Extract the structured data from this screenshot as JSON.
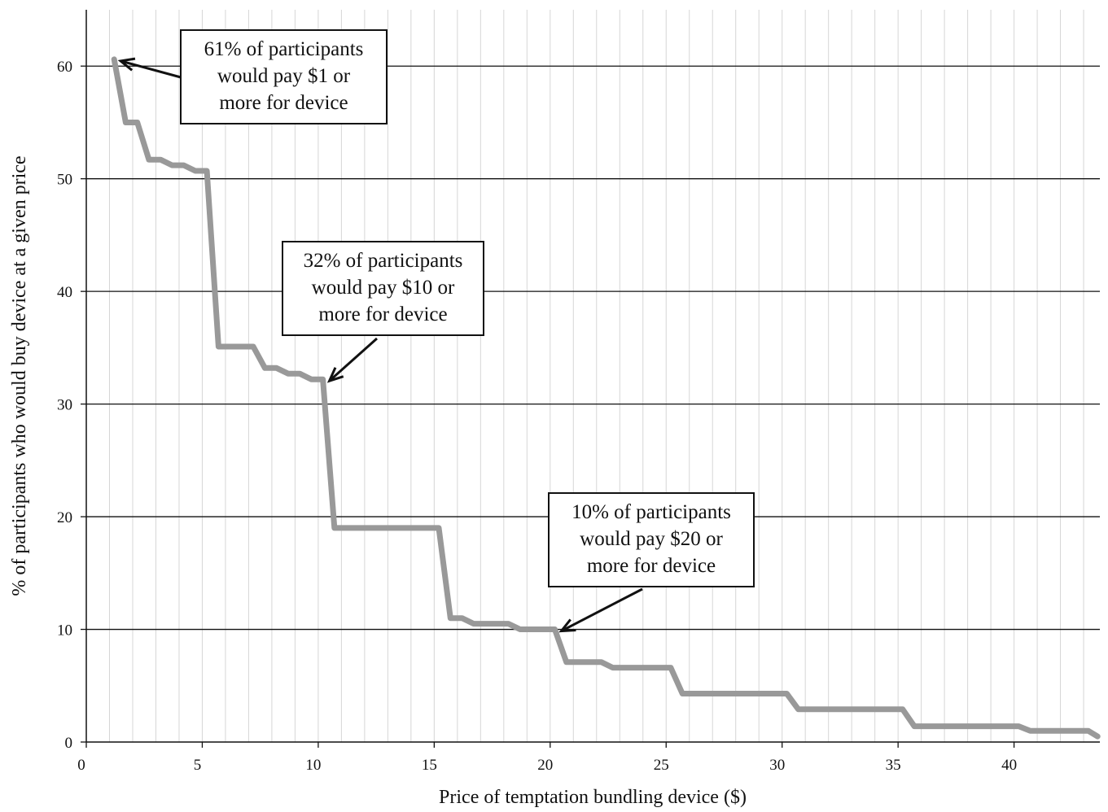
{
  "chart_data": {
    "type": "line",
    "title": "",
    "xlabel": "Price of temptation bundling device ($)",
    "ylabel": "% of participants who would buy device at a given price",
    "xlim": [
      0,
      43.7
    ],
    "ylim": [
      0,
      65
    ],
    "x_ticks": [
      "0",
      "5",
      "10",
      "15",
      "20",
      "25",
      "30",
      "35",
      "40"
    ],
    "y_ticks": [
      "0",
      "10",
      "20",
      "30",
      "40",
      "50",
      "60"
    ],
    "grid": {
      "major_horizontal": true,
      "minor_vertical": true
    },
    "series": [
      {
        "color": "#999999",
        "x": [
          1.2,
          1.7,
          2.2,
          2.7,
          3.2,
          3.7,
          4.2,
          4.7,
          5.2,
          5.7,
          6.2,
          6.7,
          7.2,
          7.7,
          8.2,
          8.7,
          9.2,
          9.7,
          10.2,
          10.7,
          11.2,
          11.7,
          12.2,
          12.7,
          13.2,
          13.7,
          14.2,
          14.7,
          15.2,
          15.7,
          16.2,
          16.7,
          17.2,
          17.7,
          18.2,
          18.7,
          19.2,
          19.7,
          20.2,
          20.7,
          21.2,
          21.7,
          22.2,
          22.7,
          23.2,
          23.7,
          24.2,
          24.7,
          25.2,
          25.7,
          26.2,
          26.7,
          27.2,
          27.7,
          28.2,
          28.7,
          29.2,
          29.7,
          30.2,
          30.7,
          31.2,
          31.7,
          32.2,
          32.7,
          33.2,
          33.7,
          34.2,
          34.7,
          35.2,
          35.7,
          36.2,
          36.7,
          37.2,
          37.7,
          38.2,
          38.7,
          39.2,
          39.7,
          40.2,
          40.7,
          41.2,
          41.7,
          42.2,
          42.7,
          43.2,
          43.6
        ],
        "y": [
          60.6,
          55.0,
          55.0,
          51.7,
          51.7,
          51.2,
          51.2,
          50.7,
          50.7,
          35.1,
          35.1,
          35.1,
          35.1,
          33.2,
          33.2,
          32.7,
          32.7,
          32.2,
          32.2,
          19.0,
          19.0,
          19.0,
          19.0,
          19.0,
          19.0,
          19.0,
          19.0,
          19.0,
          19.0,
          11.0,
          11.0,
          10.5,
          10.5,
          10.5,
          10.5,
          10.0,
          10.0,
          10.0,
          10.0,
          7.1,
          7.1,
          7.1,
          7.1,
          6.6,
          6.6,
          6.6,
          6.6,
          6.6,
          6.6,
          4.3,
          4.3,
          4.3,
          4.3,
          4.3,
          4.3,
          4.3,
          4.3,
          4.3,
          4.3,
          2.9,
          2.9,
          2.9,
          2.9,
          2.9,
          2.9,
          2.9,
          2.9,
          2.9,
          2.9,
          1.4,
          1.4,
          1.4,
          1.4,
          1.4,
          1.4,
          1.4,
          1.4,
          1.4,
          1.4,
          1.0,
          1.0,
          1.0,
          1.0,
          1.0,
          1.0,
          0.5
        ]
      }
    ],
    "annotations": [
      {
        "lines": [
          "61% of participants",
          "would pay $1 or",
          "more for device"
        ],
        "target": [
          1.2,
          60.6
        ]
      },
      {
        "lines": [
          "32% of participants",
          "would pay $10 or",
          "more for device"
        ],
        "target": [
          10.2,
          32.2
        ]
      },
      {
        "lines": [
          "10% of participants",
          "would pay $20 or",
          "more for device"
        ],
        "target": [
          20.2,
          10.0
        ]
      }
    ]
  }
}
